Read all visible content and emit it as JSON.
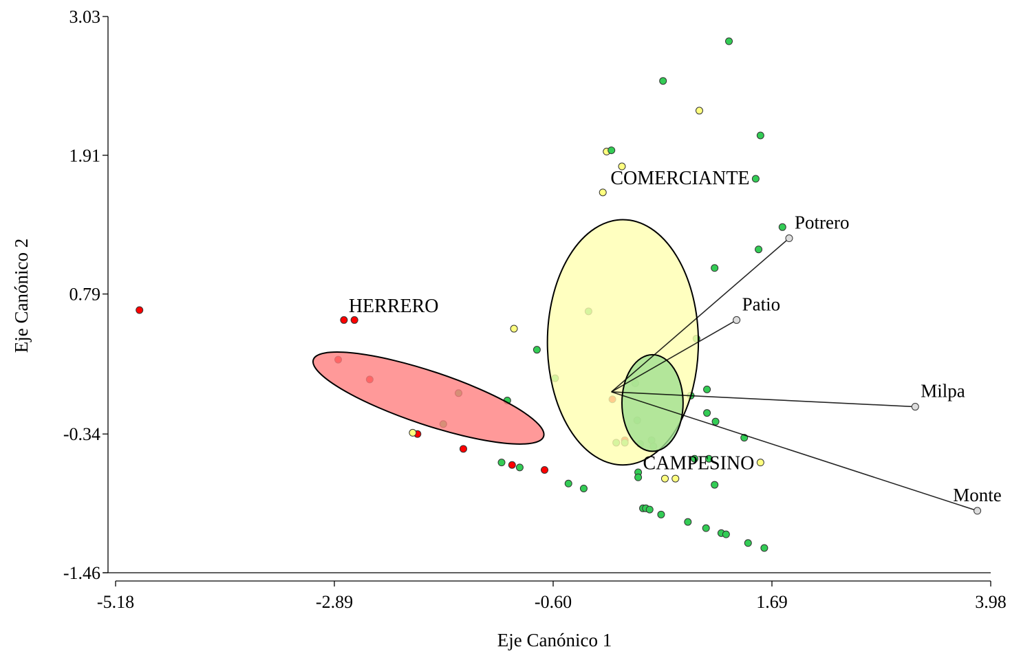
{
  "chart_data": {
    "type": "scatter",
    "title": "",
    "xlabel": "Eje Canónico 1",
    "ylabel": "Eje Canónico 2",
    "xlim": [
      -5.18,
      3.98
    ],
    "ylim": [
      -1.46,
      3.03
    ],
    "xticks": [
      "-5.18",
      "-2.89",
      "-0.60",
      "1.69",
      "3.98"
    ],
    "yticks": [
      "3.03",
      "1.91",
      "0.79",
      "-0.34",
      "-1.46"
    ],
    "colors": {
      "HERRERO": "#ff0000",
      "COMERCIANTE": "#ffff80",
      "CAMPESINO": "#33cc55",
      "vector_end": "#dddddd",
      "ellipse_herrero": "#ff8080",
      "ellipse_comerciante": "#ffffb0",
      "ellipse_campesino": "#a0e090"
    },
    "groups": [
      {
        "name": "HERRERO",
        "label_pos": [
          -2.74,
          0.7
        ],
        "points": [
          [
            -4.93,
            0.66
          ],
          [
            -2.79,
            0.58
          ],
          [
            -2.68,
            0.58
          ],
          [
            -2.85,
            0.26
          ],
          [
            -2.52,
            0.1
          ],
          [
            -2.02,
            -0.34
          ],
          [
            -1.54,
            -0.46
          ],
          [
            -1.03,
            -0.59
          ],
          [
            -0.69,
            -0.63
          ],
          [
            0.02,
            -0.06
          ],
          [
            0.15,
            -0.39
          ]
        ]
      },
      {
        "name": "COMERCIANTE",
        "label_pos": [
          0.0,
          1.73
        ],
        "points": [
          [
            0.93,
            2.27
          ],
          [
            -0.04,
            1.94
          ],
          [
            0.12,
            1.82
          ],
          [
            -0.08,
            1.61
          ],
          [
            -1.01,
            0.51
          ],
          [
            -2.07,
            -0.33
          ],
          [
            0.57,
            -0.7
          ],
          [
            0.68,
            -0.7
          ],
          [
            1.57,
            -0.57
          ]
        ]
      },
      {
        "name": "CAMPESINO",
        "label_pos": [
          0.34,
          -0.57
        ],
        "points": [
          [
            1.24,
            2.83
          ],
          [
            0.55,
            2.51
          ],
          [
            1.57,
            2.07
          ],
          [
            0.01,
            1.95
          ],
          [
            1.52,
            1.72
          ],
          [
            1.8,
            1.33
          ],
          [
            1.55,
            1.15
          ],
          [
            1.09,
            1.0
          ],
          [
            -0.23,
            0.65
          ],
          [
            -0.77,
            0.34
          ],
          [
            0.9,
            0.43
          ],
          [
            -0.58,
            0.11
          ],
          [
            0.26,
            0.07
          ],
          [
            1.01,
            0.02
          ],
          [
            0.84,
            -0.03
          ],
          [
            1.01,
            -0.17
          ],
          [
            1.1,
            -0.24
          ],
          [
            0.28,
            -0.23
          ],
          [
            1.4,
            -0.37
          ],
          [
            0.06,
            -0.41
          ],
          [
            0.15,
            -0.41
          ],
          [
            0.31,
            -0.42
          ],
          [
            0.43,
            -0.39
          ],
          [
            0.45,
            -0.44
          ],
          [
            0.88,
            -0.54
          ],
          [
            1.03,
            -0.54
          ],
          [
            0.29,
            -0.65
          ],
          [
            0.29,
            -0.69
          ],
          [
            1.09,
            -0.75
          ],
          [
            -1.14,
            -0.57
          ],
          [
            -0.95,
            -0.61
          ],
          [
            -0.44,
            -0.74
          ],
          [
            -0.28,
            -0.78
          ],
          [
            0.34,
            -0.94
          ],
          [
            0.37,
            -0.94
          ],
          [
            0.41,
            -0.95
          ],
          [
            0.53,
            -0.99
          ],
          [
            0.81,
            -1.05
          ],
          [
            1.0,
            -1.1
          ],
          [
            1.16,
            -1.14
          ],
          [
            1.21,
            -1.15
          ],
          [
            1.44,
            -1.22
          ],
          [
            1.61,
            -1.26
          ],
          [
            -1.59,
            -0.01
          ],
          [
            -1.75,
            -0.26
          ],
          [
            -1.08,
            -0.07
          ]
        ]
      }
    ],
    "ellipses": [
      {
        "group": "HERRERO",
        "major_axis_ends": [
          [
            -3.11,
            0.26
          ],
          [
            -0.7,
            -0.36
          ]
        ],
        "minor_ratio": 0.22
      },
      {
        "group": "COMERCIANTE",
        "center": [
          0.13,
          0.4
        ],
        "semi_axes": [
          0.79,
          0.99
        ]
      },
      {
        "group": "CAMPESINO",
        "center": [
          0.44,
          -0.09
        ],
        "semi_axes": [
          0.32,
          0.39
        ]
      }
    ],
    "vectors": [
      {
        "name": "Potrero",
        "end": [
          1.87,
          1.24
        ]
      },
      {
        "name": "Patio",
        "end": [
          1.32,
          0.58
        ]
      },
      {
        "name": "Milpa",
        "end": [
          3.19,
          -0.12
        ]
      },
      {
        "name": "Monte",
        "end": [
          3.84,
          -0.96
        ]
      }
    ],
    "vector_origin": [
      0.01,
      0.0
    ],
    "grid": false,
    "legend": "none"
  }
}
